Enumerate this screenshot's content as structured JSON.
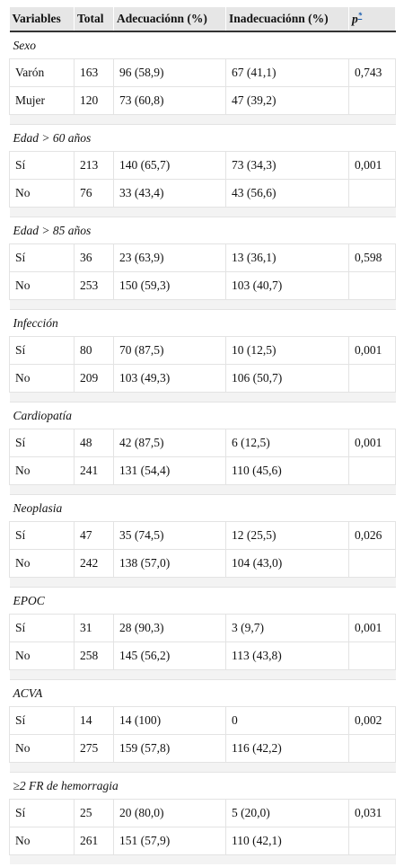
{
  "header": {
    "columns": [
      "Variables",
      "Total",
      "Adecuaciónn (%)",
      "Inadecuaciónn (%)",
      {
        "text": "p",
        "note": "*"
      }
    ]
  },
  "groups": [
    {
      "title": "Sexo",
      "rows": [
        [
          "Varón",
          "163",
          "96 (58,9)",
          "67 (41,1)",
          "0,743"
        ],
        [
          "Mujer",
          "120",
          "73 (60,8)",
          "47 (39,2)"
        ]
      ]
    },
    {
      "title": "Edad > 60 años",
      "rows": [
        [
          "Sí",
          "213",
          "140 (65,7)",
          "73 (34,3)",
          "0,001"
        ],
        [
          "No",
          "76",
          "33 (43,4)",
          "43 (56,6)"
        ]
      ]
    },
    {
      "title": "Edad > 85 años",
      "rows": [
        [
          "Sí",
          "36",
          "23 (63,9)",
          "13 (36,1)",
          "0,598"
        ],
        [
          "No",
          "253",
          "150 (59,3)",
          "103 (40,7)"
        ]
      ]
    },
    {
      "title": "Infección",
      "rows": [
        [
          "Sí",
          "80",
          "70 (87,5)",
          "10 (12,5)",
          "0,001"
        ],
        [
          "No",
          "209",
          "103 (49,3)",
          "106 (50,7)"
        ]
      ]
    },
    {
      "title": "Cardiopatía",
      "rows": [
        [
          "Sí",
          "48",
          "42 (87,5)",
          "6 (12,5)",
          "0,001"
        ],
        [
          "No",
          "241",
          "131 (54,4)",
          "110 (45,6)"
        ]
      ]
    },
    {
      "title": "Neoplasia",
      "rows": [
        [
          "Sí",
          "47",
          "35 (74,5)",
          "12 (25,5)",
          "0,026"
        ],
        [
          "No",
          "242",
          "138 (57,0)",
          "104 (43,0)"
        ]
      ]
    },
    {
      "title": "EPOC",
      "rows": [
        [
          "Sí",
          "31",
          "28 (90,3)",
          "3 (9,7)",
          "0,001"
        ],
        [
          "No",
          "258",
          "145 (56,2)",
          "113 (43,8)"
        ]
      ]
    },
    {
      "title": "ACVA",
      "rows": [
        [
          "Sí",
          "14",
          "14 (100)",
          "0",
          "0,002"
        ],
        [
          "No",
          "275",
          "159 (57,8)",
          "116 (42,2)"
        ]
      ]
    },
    {
      "title": "≥2 FR de hemorragia",
      "rows": [
        [
          "Sí",
          "25",
          "20 (80,0)",
          "5 (20,0)",
          "0,031"
        ],
        [
          "No",
          "261",
          "151 (57,9)",
          "110 (42,1)"
        ]
      ]
    }
  ]
}
